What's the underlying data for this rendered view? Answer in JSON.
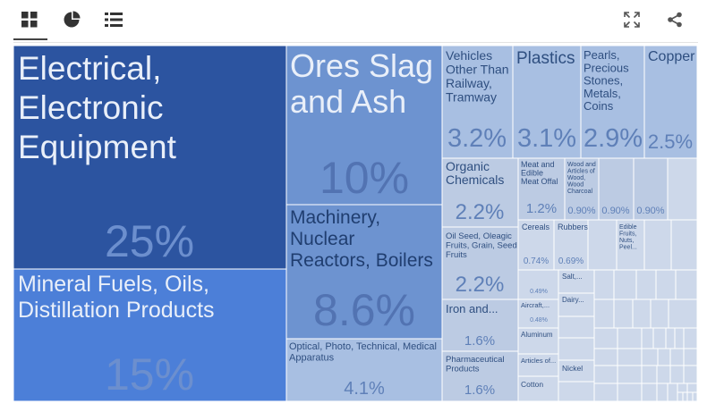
{
  "toolbar": {
    "icons": [
      "grid-view-icon",
      "pie-chart-icon",
      "list-view-icon",
      "fullscreen-icon",
      "share-icon"
    ]
  },
  "colors": {
    "large_dark": "#2c54a0",
    "large_mid": "#4c7fd8",
    "mid": "#6d93d0",
    "light": "#a8bfe2",
    "lighter": "#bccbe3",
    "lightest": "#cdd8ea",
    "text_light": "#e9eff9",
    "text_on_light": "#2f4f80",
    "pct_on_dark": "#6c8fce",
    "pct_on_light": "#5f80b8"
  },
  "chart_data": {
    "type": "treemap",
    "unit": "%",
    "items": [
      {
        "name": "Electrical, Electronic Equipment",
        "value": 25,
        "label": "25%"
      },
      {
        "name": "Mineral Fuels, Oils, Distillation Products",
        "value": 15,
        "label": "15%"
      },
      {
        "name": "Ores Slag and Ash",
        "value": 10,
        "label": "10%"
      },
      {
        "name": "Machinery, Nuclear Reactors, Boilers",
        "value": 8.6,
        "label": "8.6%"
      },
      {
        "name": "Optical, Photo, Technical, Medical Apparatus",
        "value": 4.1,
        "label": "4.1%"
      },
      {
        "name": "Vehicles Other Than Railway, Tramway",
        "value": 3.2,
        "label": "3.2%"
      },
      {
        "name": "Plastics",
        "value": 3.1,
        "label": "3.1%"
      },
      {
        "name": "Pearls, Precious Stones, Metals, Coins",
        "value": 2.9,
        "label": "2.9%"
      },
      {
        "name": "Copper",
        "value": 2.5,
        "label": "2.5%"
      },
      {
        "name": "Organic Chemicals",
        "value": 2.2,
        "label": "2.2%"
      },
      {
        "name": "Oil Seed, Oleagic Fruits, Grain, Seed, Fruits",
        "value": 2.2,
        "label": "2.2%"
      },
      {
        "name": "Iron and...",
        "value": 1.6,
        "label": "1.6%"
      },
      {
        "name": "Pharmaceutical Products",
        "value": 1.6,
        "label": "1.6%"
      },
      {
        "name": "Meat and Edible Meat Offal",
        "value": 1.2,
        "label": "1.2%"
      },
      {
        "name": "Wood and Articles of Wood, Wood Charcoal",
        "value": 0.9,
        "label": "0.90%"
      },
      {
        "name": "",
        "value": 0.9,
        "label": "0.90%"
      },
      {
        "name": "",
        "value": 0.9,
        "label": "0.90%"
      },
      {
        "name": "Cereals",
        "value": 0.74,
        "label": "0.74%"
      },
      {
        "name": "Rubbers",
        "value": 0.69,
        "label": "0.69%"
      },
      {
        "name": "Edible Fruits, Nuts, Peel...",
        "value": null,
        "label": ""
      },
      {
        "name": "",
        "value": 0.49,
        "label": "0.49%"
      },
      {
        "name": "Salt,...",
        "value": null,
        "label": ""
      },
      {
        "name": "Aircraft,...",
        "value": 0.48,
        "label": "0.48%"
      },
      {
        "name": "Dairy...",
        "value": null,
        "label": ""
      },
      {
        "name": "Aluminum",
        "value": null,
        "label": ""
      },
      {
        "name": "Articles of...",
        "value": null,
        "label": ""
      },
      {
        "name": "Nickel",
        "value": null,
        "label": ""
      },
      {
        "name": "Cotton",
        "value": null,
        "label": ""
      }
    ]
  }
}
